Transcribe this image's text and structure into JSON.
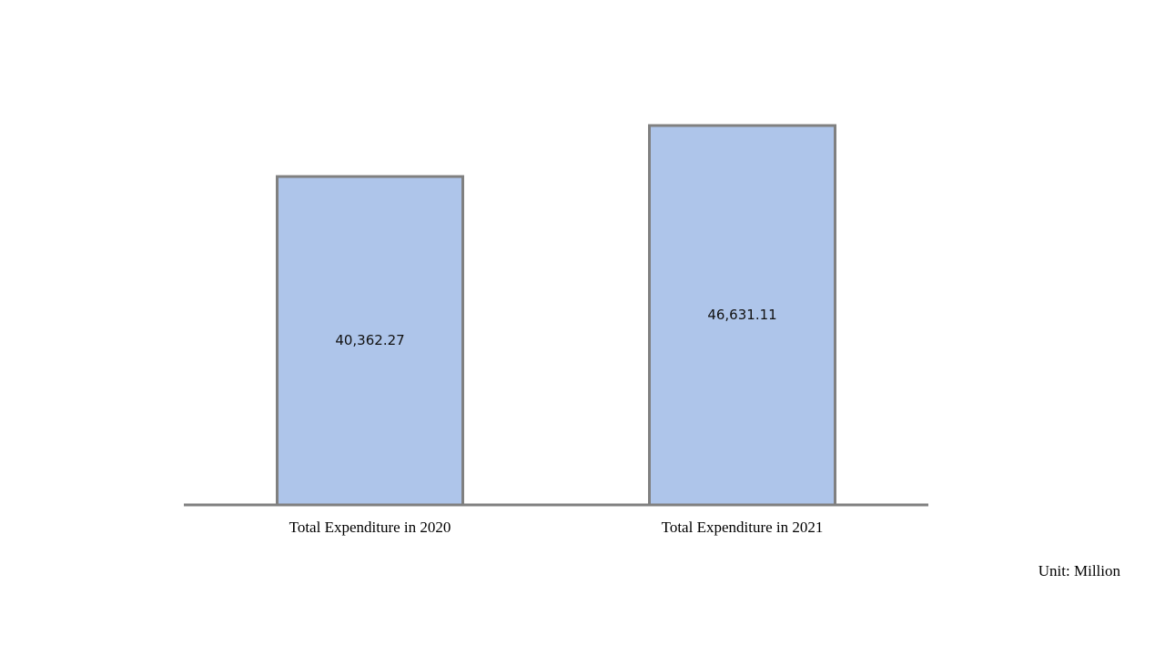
{
  "chart_data": {
    "type": "bar",
    "categories": [
      "Total Expenditure in 2020",
      "Total Expenditure in 2021"
    ],
    "values": [
      40362.27,
      46631.11
    ],
    "value_labels": [
      "40,362.27",
      "46,631.11"
    ],
    "color": "#aec5ea",
    "annotation": "Unit: Million"
  }
}
